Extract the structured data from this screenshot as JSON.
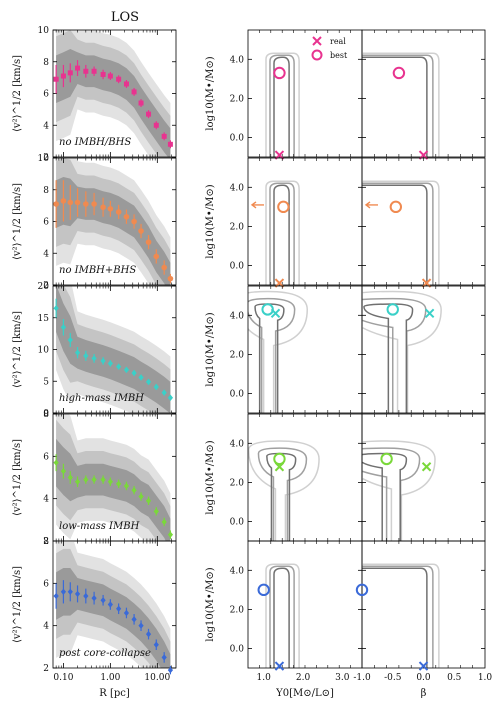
{
  "figure": {
    "title": "LOS",
    "left_ylabel": "⟨v²⟩^1/2 [km/s]",
    "mid_ylabel": "log10(M•/M⊙)",
    "left_xlabel": "R [pc]",
    "mid_xlabel": "Υ0[M⊙/L⊙]",
    "right_xlabel": "β",
    "legend": {
      "real": "real",
      "best": "best",
      "position": "top-right of first middle panel"
    }
  },
  "chart_data": [
    {
      "type": "scatter",
      "panel": "dispersion-profile",
      "row_label": "no IMBH/BHS",
      "color": "#e8338f",
      "marker": "square",
      "x_scale": "log",
      "xlim": [
        0.06,
        25
      ],
      "ylim": [
        2,
        10
      ],
      "yticks": [
        2,
        4,
        6,
        8,
        10
      ],
      "x": [
        0.07,
        0.1,
        0.14,
        0.2,
        0.3,
        0.45,
        0.7,
        1.0,
        1.5,
        2.2,
        3.2,
        4.5,
        6.5,
        9.5,
        14,
        19
      ],
      "y": [
        6.9,
        7.1,
        7.3,
        7.6,
        7.4,
        7.4,
        7.2,
        7.1,
        6.9,
        6.6,
        6.1,
        5.4,
        4.7,
        4.0,
        3.3,
        2.8
      ],
      "yerr": [
        0.9,
        0.7,
        0.6,
        0.5,
        0.4,
        0.3,
        0.3,
        0.25,
        0.25,
        0.25,
        0.25,
        0.25,
        0.25,
        0.25,
        0.25,
        0.25
      ]
    },
    {
      "type": "scatter",
      "panel": "dispersion-profile",
      "row_label": "no IMBH+BHS",
      "color": "#f08a50",
      "marker": "circle",
      "x_scale": "log",
      "xlim": [
        0.06,
        25
      ],
      "ylim": [
        2,
        10
      ],
      "yticks": [
        2,
        4,
        6,
        8,
        10
      ],
      "x": [
        0.07,
        0.1,
        0.14,
        0.2,
        0.3,
        0.45,
        0.7,
        1.0,
        1.5,
        2.2,
        3.2,
        4.5,
        6.5,
        9.5,
        14,
        19
      ],
      "y": [
        7.1,
        7.3,
        7.2,
        7.2,
        7.1,
        7.1,
        6.9,
        6.8,
        6.6,
        6.3,
        6.0,
        5.4,
        4.7,
        3.8,
        3.1,
        2.4
      ],
      "yerr": [
        1.5,
        1.3,
        1.1,
        0.9,
        0.8,
        0.7,
        0.6,
        0.5,
        0.45,
        0.45,
        0.45,
        0.45,
        0.45,
        0.45,
        0.45,
        0.3
      ]
    },
    {
      "type": "scatter",
      "panel": "dispersion-profile",
      "row_label": "high-mass IMBH",
      "color": "#3ad0c8",
      "marker": "diamond",
      "x_scale": "log",
      "xlim": [
        0.06,
        25
      ],
      "ylim": [
        0,
        20
      ],
      "yticks": [
        0,
        5,
        10,
        15,
        20
      ],
      "x": [
        0.07,
        0.1,
        0.14,
        0.2,
        0.3,
        0.45,
        0.7,
        1.0,
        1.5,
        2.2,
        3.2,
        4.5,
        6.5,
        9.5,
        14,
        19
      ],
      "y": [
        16.5,
        13.5,
        11.5,
        9.5,
        9.0,
        8.6,
        8.2,
        7.8,
        7.3,
        6.8,
        6.3,
        5.6,
        4.9,
        4.1,
        3.2,
        2.4
      ],
      "yerr": [
        1.5,
        1.3,
        1.1,
        0.9,
        0.8,
        0.7,
        0.6,
        0.5,
        0.45,
        0.45,
        0.45,
        0.45,
        0.45,
        0.45,
        0.45,
        0.3
      ]
    },
    {
      "type": "scatter",
      "panel": "dispersion-profile",
      "row_label": "low-mass IMBH",
      "color": "#7ad83a",
      "marker": "diamond",
      "x_scale": "log",
      "xlim": [
        0.06,
        25
      ],
      "ylim": [
        2,
        8
      ],
      "yticks": [
        2,
        4,
        6,
        8
      ],
      "x": [
        0.07,
        0.1,
        0.14,
        0.2,
        0.3,
        0.45,
        0.7,
        1.0,
        1.5,
        2.2,
        3.2,
        4.5,
        6.5,
        9.5,
        14,
        19
      ],
      "y": [
        5.7,
        5.3,
        5.0,
        4.8,
        4.9,
        4.9,
        4.9,
        4.8,
        4.7,
        4.6,
        4.4,
        4.1,
        3.9,
        3.4,
        2.9,
        2.3
      ],
      "yerr": [
        0.4,
        0.35,
        0.3,
        0.25,
        0.2,
        0.2,
        0.2,
        0.2,
        0.2,
        0.2,
        0.2,
        0.2,
        0.2,
        0.2,
        0.2,
        0.2
      ]
    },
    {
      "type": "scatter",
      "panel": "dispersion-profile",
      "row_label": "post core-collapse",
      "color": "#3a6ad8",
      "marker": "diamond",
      "x_scale": "log",
      "xlim": [
        0.06,
        25
      ],
      "ylim": [
        2,
        8
      ],
      "yticks": [
        2,
        4,
        6,
        8
      ],
      "x": [
        0.07,
        0.1,
        0.14,
        0.2,
        0.3,
        0.45,
        0.7,
        1.0,
        1.5,
        2.2,
        3.2,
        4.5,
        6.5,
        9.5,
        14,
        19
      ],
      "y": [
        5.4,
        5.6,
        5.6,
        5.5,
        5.4,
        5.3,
        5.2,
        5.0,
        4.8,
        4.6,
        4.3,
        4.0,
        3.6,
        3.1,
        2.5,
        1.9
      ],
      "yerr": [
        0.6,
        0.55,
        0.45,
        0.4,
        0.35,
        0.3,
        0.25,
        0.25,
        0.25,
        0.25,
        0.25,
        0.25,
        0.25,
        0.25,
        0.25,
        0.2
      ]
    },
    {
      "type": "contour",
      "panel": "mass-vs-upsilon",
      "row_label": "no IMBH/BHS",
      "xlim": [
        0.6,
        3.5
      ],
      "ylim": [
        -1.0,
        5.5
      ],
      "xticks": [
        1.0,
        2.0,
        3.0
      ],
      "yticks": [
        0.0,
        2.0,
        4.0
      ],
      "real": {
        "x": 1.4,
        "y": -0.9,
        "off_axis": false
      },
      "best": {
        "x": 1.4,
        "y": 3.3
      }
    },
    {
      "type": "contour",
      "panel": "mass-vs-upsilon",
      "row_label": "no IMBH+BHS",
      "xlim": [
        0.6,
        3.5
      ],
      "ylim": [
        -1.0,
        5.5
      ],
      "xticks": [
        1.0,
        2.0,
        3.0
      ],
      "yticks": [
        0.0,
        2.0,
        4.0
      ],
      "real": {
        "x": 1.4,
        "y": -0.9,
        "off_axis": false
      },
      "best": {
        "x": 1.5,
        "y": 3.0
      },
      "arrow_at_y": 3.1
    },
    {
      "type": "contour",
      "panel": "mass-vs-upsilon",
      "row_label": "high-mass IMBH",
      "xlim": [
        0.6,
        3.5
      ],
      "ylim": [
        -1.0,
        5.5
      ],
      "xticks": [
        1.0,
        2.0,
        3.0
      ],
      "yticks": [
        0.0,
        2.0,
        4.0
      ],
      "real": {
        "x": 1.3,
        "y": 4.1
      },
      "best": {
        "x": 1.1,
        "y": 4.3
      }
    },
    {
      "type": "contour",
      "panel": "mass-vs-upsilon",
      "row_label": "low-mass IMBH",
      "xlim": [
        0.6,
        3.5
      ],
      "ylim": [
        -1.0,
        5.5
      ],
      "xticks": [
        1.0,
        2.0,
        3.0
      ],
      "yticks": [
        0.0,
        2.0,
        4.0
      ],
      "real": {
        "x": 1.4,
        "y": 2.8
      },
      "best": {
        "x": 1.4,
        "y": 3.2
      }
    },
    {
      "type": "contour",
      "panel": "mass-vs-upsilon",
      "row_label": "post core-collapse",
      "xlim": [
        0.6,
        3.5
      ],
      "ylim": [
        -1.0,
        5.5
      ],
      "xticks": [
        1.0,
        2.0,
        3.0
      ],
      "yticks": [
        0.0,
        2.0,
        4.0
      ],
      "real": {
        "x": 1.4,
        "y": -0.9,
        "off_axis": false
      },
      "best": {
        "x": 1.0,
        "y": 3.0
      }
    },
    {
      "type": "contour",
      "panel": "mass-vs-beta",
      "row_label": "no IMBH/BHS",
      "xlim": [
        -1.0,
        1.0
      ],
      "ylim": [
        -1.0,
        5.5
      ],
      "xticks": [
        -1.0,
        -0.5,
        0.0,
        0.5,
        1.0
      ],
      "real": {
        "x": 0.0,
        "y": -0.9
      },
      "best": {
        "x": -0.4,
        "y": 3.3
      }
    },
    {
      "type": "contour",
      "panel": "mass-vs-beta",
      "row_label": "no IMBH+BHS",
      "xlim": [
        -1.0,
        1.0
      ],
      "ylim": [
        -1.0,
        5.5
      ],
      "xticks": [
        -1.0,
        -0.5,
        0.0,
        0.5,
        1.0
      ],
      "real": {
        "x": 0.05,
        "y": -0.9
      },
      "best": {
        "x": -0.45,
        "y": 3.0
      },
      "arrow_at_y": 3.1
    },
    {
      "type": "contour",
      "panel": "mass-vs-beta",
      "row_label": "high-mass IMBH",
      "xlim": [
        -1.0,
        1.0
      ],
      "ylim": [
        -1.0,
        5.5
      ],
      "xticks": [
        -1.0,
        -0.5,
        0.0,
        0.5,
        1.0
      ],
      "real": {
        "x": 0.1,
        "y": 4.1
      },
      "best": {
        "x": -0.5,
        "y": 4.3
      }
    },
    {
      "type": "contour",
      "panel": "mass-vs-beta",
      "row_label": "low-mass IMBH",
      "xlim": [
        -1.0,
        1.0
      ],
      "ylim": [
        -1.0,
        5.5
      ],
      "xticks": [
        -1.0,
        -0.5,
        0.0,
        0.5,
        1.0
      ],
      "real": {
        "x": 0.05,
        "y": 2.8
      },
      "best": {
        "x": -0.6,
        "y": 3.2
      }
    },
    {
      "type": "contour",
      "panel": "mass-vs-beta",
      "row_label": "post core-collapse",
      "xlim": [
        -1.0,
        1.0
      ],
      "ylim": [
        -1.0,
        5.5
      ],
      "xticks": [
        -1.0,
        -0.5,
        0.0,
        0.5,
        1.0
      ],
      "real": {
        "x": 0.0,
        "y": -0.9
      },
      "best": {
        "x": -1.0,
        "y": 3.0
      }
    }
  ],
  "colors": {
    "legend_marker": "#e8338f",
    "contour_dark": "#707070",
    "contour_mid": "#a0a0a0",
    "contour_light": "#d0d0d0",
    "band_dark": "#9a9a9a",
    "band_mid": "#c4c4c4",
    "band_light": "#e2e2e2"
  }
}
